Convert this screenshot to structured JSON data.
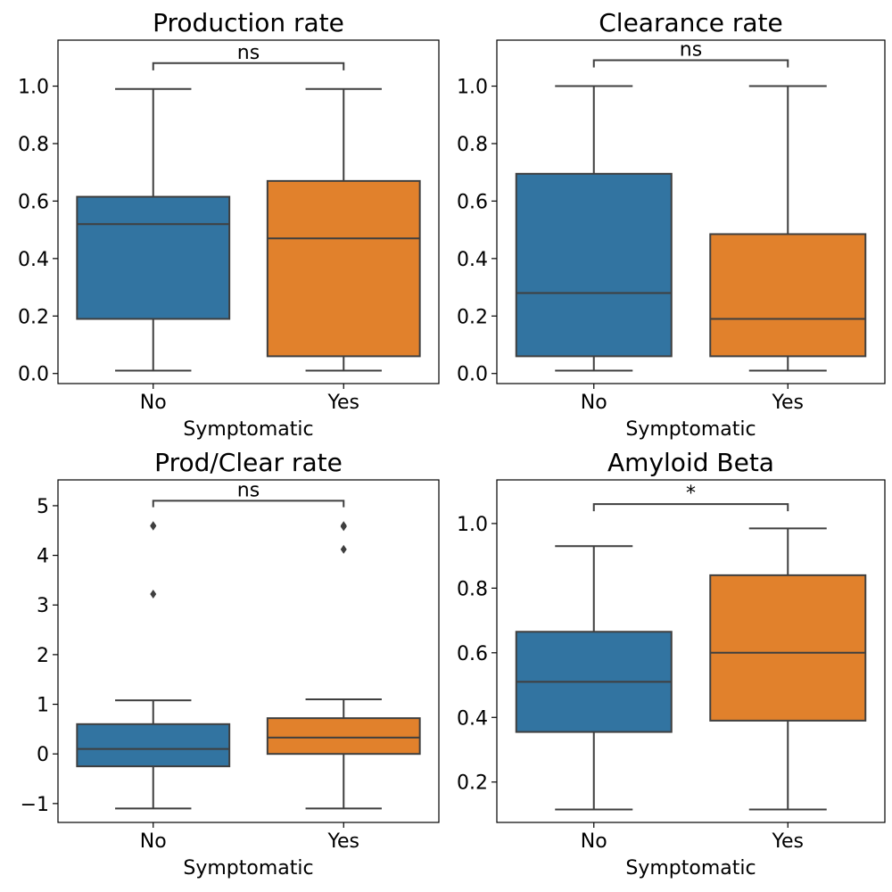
{
  "colors": {
    "no": "#3274a1",
    "yes": "#e1812c",
    "line": "#3f3f3f",
    "axis": "#000000"
  },
  "chart_data": [
    {
      "type": "box",
      "title": "Production rate",
      "xlabel": "Symptomatic",
      "ylabel": "",
      "categories": [
        "No",
        "Yes"
      ],
      "ylim": [
        -0.035,
        1.16
      ],
      "yticks": [
        0.0,
        0.2,
        0.4,
        0.6,
        0.8,
        1.0
      ],
      "ytick_labels": [
        "0.0",
        "0.2",
        "0.4",
        "0.6",
        "0.8",
        "1.0"
      ],
      "boxes": [
        {
          "category": "No",
          "whisker_low": 0.01,
          "q1": 0.19,
          "median": 0.52,
          "q3": 0.615,
          "whisker_high": 0.99,
          "outliers": []
        },
        {
          "category": "Yes",
          "whisker_low": 0.01,
          "q1": 0.06,
          "median": 0.47,
          "q3": 0.67,
          "whisker_high": 0.99,
          "outliers": []
        }
      ],
      "significance": {
        "label": "ns",
        "y": 1.08,
        "tick": 0.025
      }
    },
    {
      "type": "box",
      "title": "Clearance rate",
      "xlabel": "Symptomatic",
      "ylabel": "",
      "categories": [
        "No",
        "Yes"
      ],
      "ylim": [
        -0.035,
        1.16
      ],
      "yticks": [
        0.0,
        0.2,
        0.4,
        0.6,
        0.8,
        1.0
      ],
      "ytick_labels": [
        "0.0",
        "0.2",
        "0.4",
        "0.6",
        "0.8",
        "1.0"
      ],
      "boxes": [
        {
          "category": "No",
          "whisker_low": 0.01,
          "q1": 0.06,
          "median": 0.28,
          "q3": 0.695,
          "whisker_high": 1.0,
          "outliers": []
        },
        {
          "category": "Yes",
          "whisker_low": 0.01,
          "q1": 0.06,
          "median": 0.19,
          "q3": 0.485,
          "whisker_high": 1.0,
          "outliers": []
        }
      ],
      "significance": {
        "label": "ns",
        "y": 1.09,
        "tick": 0.025
      }
    },
    {
      "type": "box",
      "title": "Prod/Clear rate",
      "xlabel": "Symptomatic",
      "ylabel": "",
      "categories": [
        "No",
        "Yes"
      ],
      "ylim": [
        -1.38,
        5.52
      ],
      "yticks": [
        -1,
        0,
        1,
        2,
        3,
        4,
        5
      ],
      "ytick_labels": [
        "−1",
        "0",
        "1",
        "2",
        "3",
        "4",
        "5"
      ],
      "boxes": [
        {
          "category": "No",
          "whisker_low": -1.1,
          "q1": -0.25,
          "median": 0.1,
          "q3": 0.6,
          "whisker_high": 1.08,
          "outliers": [
            4.6,
            4.59,
            3.22
          ]
        },
        {
          "category": "Yes",
          "whisker_low": -1.1,
          "q1": 0.0,
          "median": 0.33,
          "q3": 0.72,
          "whisker_high": 1.1,
          "outliers": [
            4.6,
            4.58,
            4.12
          ]
        }
      ],
      "significance": {
        "label": "ns",
        "y": 5.1,
        "tick": 0.13
      }
    },
    {
      "type": "box",
      "title": "Amyloid Beta",
      "xlabel": "Symptomatic",
      "ylabel": "",
      "categories": [
        "No",
        "Yes"
      ],
      "ylim": [
        0.075,
        1.135
      ],
      "yticks": [
        0.2,
        0.4,
        0.6,
        0.8,
        1.0
      ],
      "ytick_labels": [
        "0.2",
        "0.4",
        "0.6",
        "0.8",
        "1.0"
      ],
      "boxes": [
        {
          "category": "No",
          "whisker_low": 0.115,
          "q1": 0.355,
          "median": 0.51,
          "q3": 0.665,
          "whisker_high": 0.93,
          "outliers": []
        },
        {
          "category": "Yes",
          "whisker_low": 0.115,
          "q1": 0.39,
          "median": 0.6,
          "q3": 0.84,
          "whisker_high": 0.985,
          "outliers": []
        }
      ],
      "significance": {
        "label": "*",
        "y": 1.06,
        "tick": 0.022
      }
    }
  ]
}
